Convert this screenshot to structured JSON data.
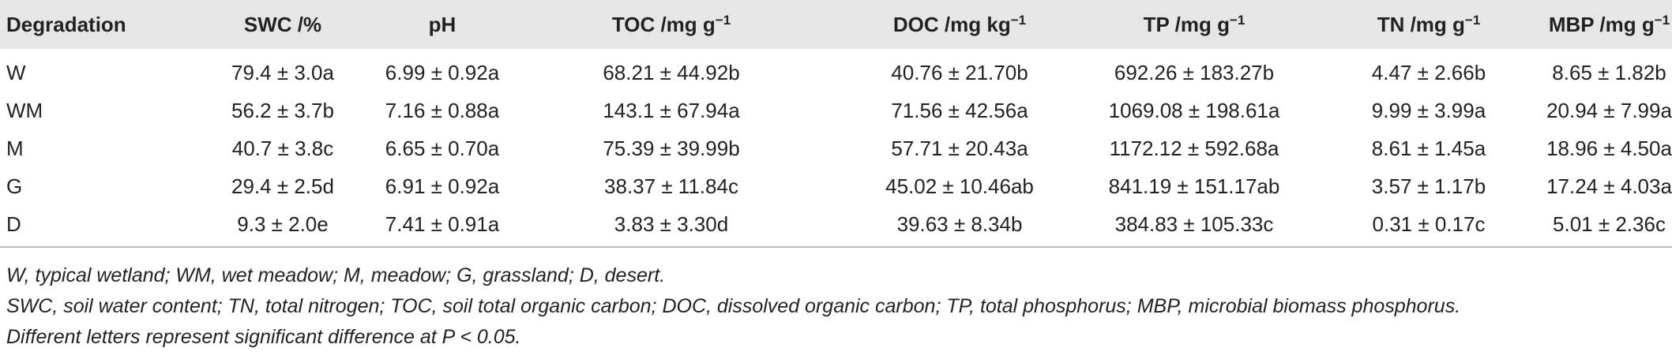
{
  "table": {
    "header": [
      {
        "text": "Degradation"
      },
      {
        "text": "SWC /%"
      },
      {
        "text": "pH"
      },
      {
        "text": "TOC /mg g",
        "sup": "−1"
      },
      {
        "text": "DOC /mg kg",
        "sup": "−1"
      },
      {
        "text": "TP /mg g",
        "sup": "−1"
      },
      {
        "text": "TN /mg g",
        "sup": "−1"
      },
      {
        "text": "MBP /mg g",
        "sup": "−1"
      }
    ],
    "rows": [
      [
        "W",
        "79.4 ± 3.0a",
        "6.99 ± 0.92a",
        "68.21 ± 44.92b",
        "40.76 ± 21.70b",
        "692.26 ± 183.27b",
        "4.47 ± 2.66b",
        "8.65 ± 1.82b"
      ],
      [
        "WM",
        "56.2 ± 3.7b",
        "7.16 ± 0.88a",
        "143.1 ± 67.94a",
        "71.56 ± 42.56a",
        "1069.08 ± 198.61a",
        "9.99 ± 3.99a",
        "20.94 ± 7.99a"
      ],
      [
        "M",
        "40.7 ± 3.8c",
        "6.65 ± 0.70a",
        "75.39 ± 39.99b",
        "57.71 ± 20.43a",
        "1172.12 ± 592.68a",
        "8.61 ± 1.45a",
        "18.96 ± 4.50a"
      ],
      [
        "G",
        "29.4 ± 2.5d",
        "6.91 ± 0.92a",
        "38.37 ± 11.84c",
        "45.02 ± 10.46ab",
        "841.19 ± 151.17ab",
        "3.57 ± 1.17b",
        "17.24 ± 4.03a"
      ],
      [
        "D",
        "9.3 ± 2.0e",
        "7.41 ± 0.91a",
        "3.83 ± 3.30d",
        "39.63 ± 8.34b",
        "384.83 ± 105.33c",
        "0.31 ± 0.17c",
        "5.01 ± 2.36c"
      ]
    ]
  },
  "footnotes": [
    "W, typical wetland; WM, wet meadow; M, meadow; G, grassland; D, desert.",
    "SWC, soil water content; TN, total nitrogen; TOC, soil total organic carbon; DOC, dissolved organic carbon; TP, total phosphorus; MBP, microbial biomass phosphorus.",
    "Different letters represent significant difference at P < 0.05."
  ]
}
